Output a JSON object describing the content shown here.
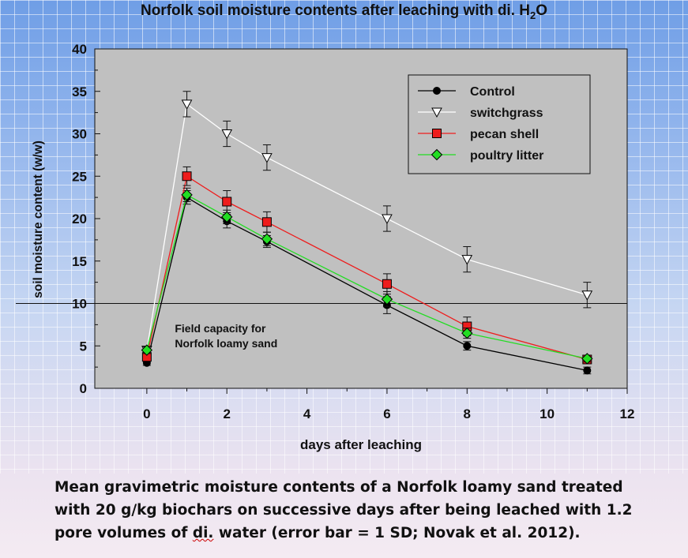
{
  "caption": {
    "pre": "Mean gravimetric moisture contents of a Norfolk loamy sand treated with 20 g/kg biochars on successive days after being leached with 1.2 pore volumes of ",
    "underlined": "di.",
    "post": " water (error bar = 1 SD; Novak et al. 2012)."
  },
  "chart_data": {
    "type": "line",
    "title": "Norfolk soil moisture contents after leaching with di. H",
    "title_subscript": "2",
    "title_suffix": "O",
    "xlabel": "days after leaching",
    "ylabel": "soil moisture content (w/w)",
    "xlim": [
      -1.3,
      12
    ],
    "ylim": [
      0,
      40
    ],
    "xticks": [
      0,
      2,
      4,
      6,
      8,
      10,
      12
    ],
    "yticks": [
      0,
      5,
      10,
      15,
      20,
      25,
      30,
      35,
      40
    ],
    "grid": false,
    "legend_position": "top-right",
    "x": [
      0,
      1,
      2,
      3,
      6,
      8,
      11
    ],
    "series": [
      {
        "name": "Control",
        "color": "#000000",
        "marker": "circle",
        "values": [
          3.0,
          22.5,
          19.7,
          17.3,
          9.8,
          5.0,
          2.1
        ],
        "errors": [
          0.3,
          0.8,
          0.8,
          0.7,
          1.0,
          0.5,
          0.4
        ]
      },
      {
        "name": "switchgrass",
        "color": "#ffffff",
        "marker": "triangle-down",
        "values": [
          4.5,
          33.5,
          30.0,
          27.2,
          20.0,
          15.2,
          11.0
        ],
        "errors": [
          0.4,
          1.5,
          1.5,
          1.5,
          1.5,
          1.5,
          1.5
        ]
      },
      {
        "name": "pecan shell",
        "color": "#ee1c1c",
        "marker": "square",
        "values": [
          3.7,
          25.0,
          22.0,
          19.6,
          12.3,
          7.3,
          3.4
        ],
        "errors": [
          0.4,
          1.1,
          1.3,
          1.2,
          1.2,
          1.1,
          0.5
        ]
      },
      {
        "name": "poultry litter",
        "color": "#22dd22",
        "marker": "diamond",
        "values": [
          4.5,
          22.8,
          20.2,
          17.6,
          10.5,
          6.5,
          3.5
        ],
        "errors": [
          0.4,
          0.8,
          0.8,
          0.8,
          0.9,
          0.6,
          0.4
        ]
      }
    ],
    "reference_line": {
      "y": 10
    },
    "annotation": [
      "Field capacity for",
      "Norfolk loamy sand"
    ]
  }
}
